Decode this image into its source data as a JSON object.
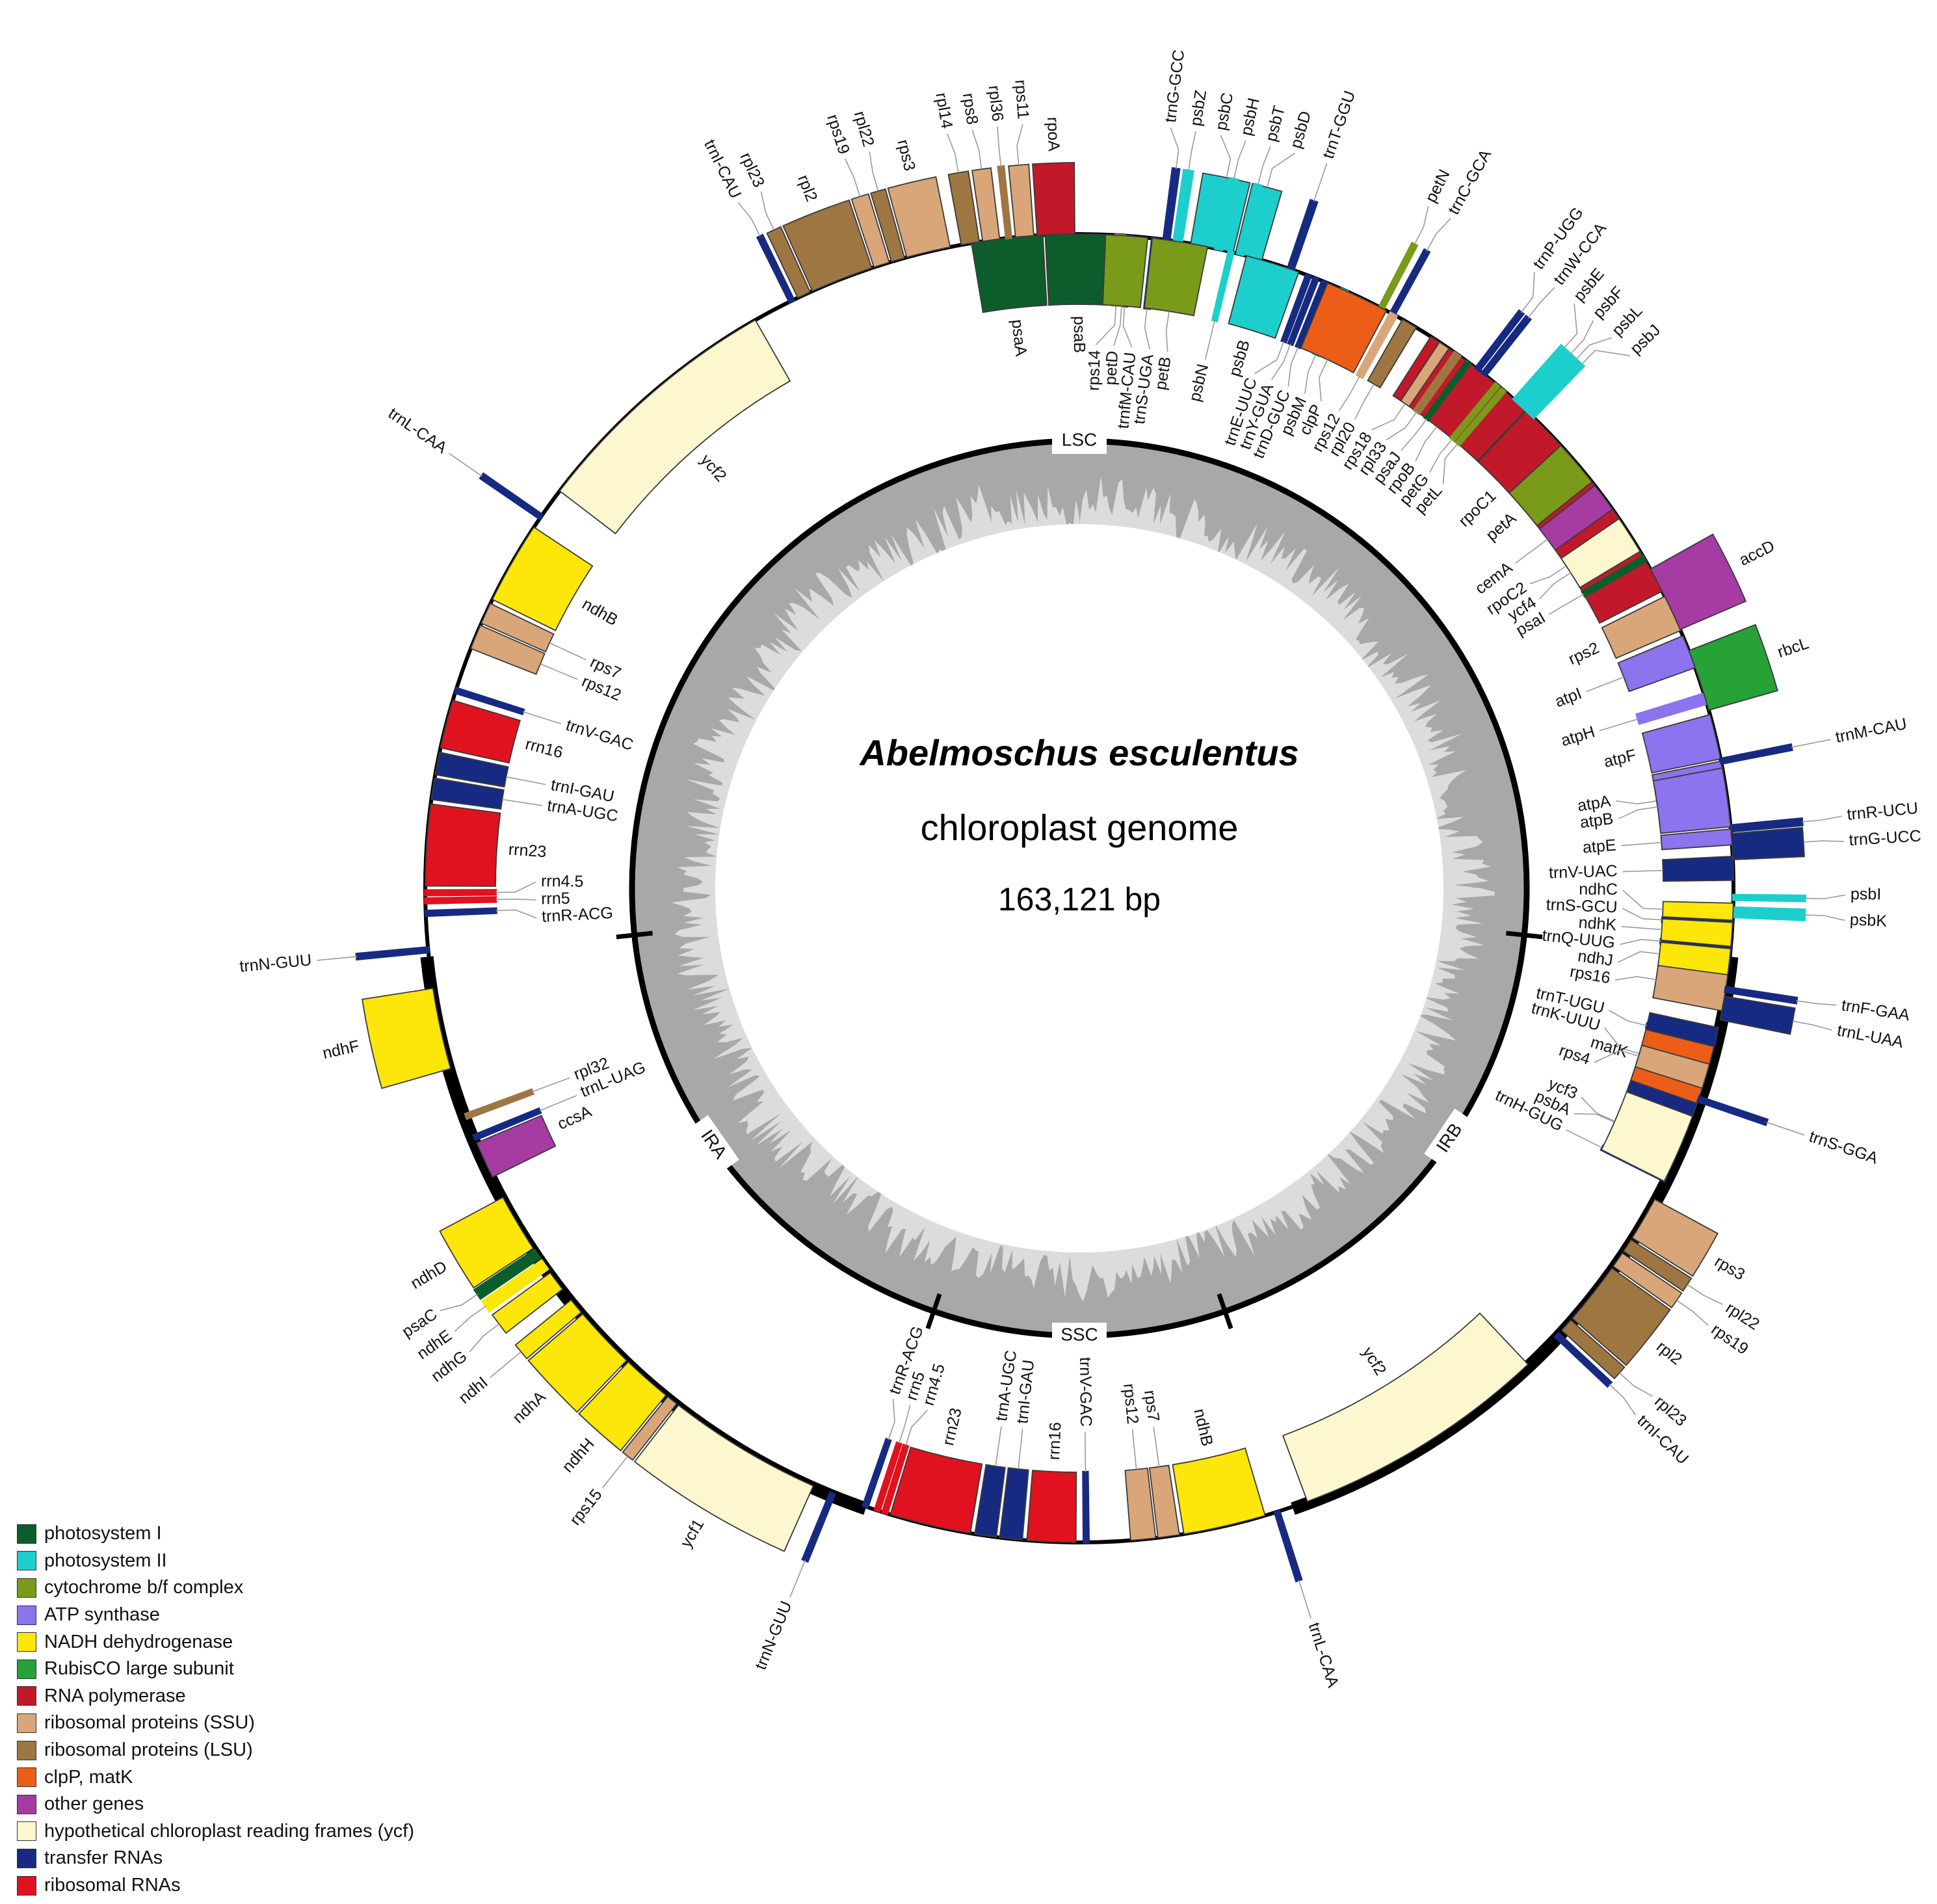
{
  "title": {
    "species": "Abelmoschus esculentus",
    "subtitle": "chloroplast genome",
    "length": "163,121 bp"
  },
  "regions": [
    {
      "label": "LSC",
      "angle": 0
    },
    {
      "label": "IRB",
      "angle": 124
    },
    {
      "label": "SSC",
      "angle": 180
    },
    {
      "label": "IRA",
      "angle": 235
    }
  ],
  "boundary_ticks": [
    96,
    161,
    199,
    264
  ],
  "colors": {
    "photosystem I": "#0d5d2c",
    "photosystem II": "#1ccfcc",
    "cytochrome b/f complex": "#7a9a1a",
    "ATP synthase": "#8d73ee",
    "NADH dehydrogenase": "#fde60a",
    "RubisCO large subunit": "#26a237",
    "RNA polymerase": "#c11929",
    "ribosomal proteins (SSU)": "#d9a679",
    "ribosomal proteins (LSU)": "#9e7642",
    "clpP, matK": "#ec5e17",
    "other genes": "#a63ba4",
    "hypothetical chloroplast reading frames (ycf)": "#fdf7cf",
    "transfer RNAs": "#172a82",
    "ribosomal RNAs": "#e0121f"
  },
  "legend": [
    {
      "label": "photosystem I",
      "color": "#0d5d2c"
    },
    {
      "label": "photosystem II",
      "color": "#1ccfcc"
    },
    {
      "label": "cytochrome b/f complex",
      "color": "#7a9a1a"
    },
    {
      "label": "ATP synthase",
      "color": "#8d73ee"
    },
    {
      "label": "NADH dehydrogenase",
      "color": "#fde60a"
    },
    {
      "label": "RubisCO large subunit",
      "color": "#26a237"
    },
    {
      "label": "RNA polymerase",
      "color": "#c11929"
    },
    {
      "label": "ribosomal proteins (SSU)",
      "color": "#d9a679"
    },
    {
      "label": "ribosomal proteins (LSU)",
      "color": "#9e7642"
    },
    {
      "label": "clpP, matK",
      "color": "#ec5e17"
    },
    {
      "label": "other genes",
      "color": "#a63ba4"
    },
    {
      "label": "hypothetical chloroplast reading frames (ycf)",
      "color": "#fdf7cf"
    },
    {
      "label": "transfer RNAs",
      "color": "#172a82"
    },
    {
      "label": "ribosomal RNAs",
      "color": "#e0121f"
    }
  ],
  "genes": [
    {
      "name": "psaA",
      "start": 350.5,
      "end": 356.8,
      "strand": "in",
      "cat": "photosystem I"
    },
    {
      "name": "psaB",
      "start": 357.0,
      "end": 362.8,
      "strand": "in",
      "cat": "photosystem I"
    },
    {
      "name": "rps14",
      "start": 363.2,
      "end": 364.0,
      "strand": "in",
      "cat": "ribosomal proteins (SSU)"
    },
    {
      "name": "trnfM-CAU",
      "start": 364.2,
      "end": 364.7,
      "strand": "in",
      "cat": "transfer RNAs"
    },
    {
      "name": "trnS-UGA",
      "start": 366.4,
      "end": 366.9,
      "strand": "in",
      "cat": "transfer RNAs"
    },
    {
      "name": "trnG-GCC",
      "start": 367.4,
      "end": 367.9,
      "strand": "out",
      "cat": "transfer RNAs"
    },
    {
      "name": "psbZ",
      "start": 368.3,
      "end": 369.0,
      "strand": "out",
      "cat": "photosystem II"
    },
    {
      "name": "psbC",
      "start": 369.8,
      "end": 373.6,
      "strand": "out",
      "cat": "photosystem II"
    },
    {
      "name": "psbD",
      "start": 373.8,
      "end": 376.2,
      "strand": "out",
      "cat": "photosystem II"
    },
    {
      "name": "trnT-GGU",
      "start": 378.6,
      "end": 379.1,
      "strand": "out",
      "cat": "transfer RNAs"
    },
    {
      "name": "trnE-UUC",
      "start": 380.3,
      "end": 380.7,
      "strand": "in",
      "cat": "transfer RNAs"
    },
    {
      "name": "trnY-GUA",
      "start": 381.0,
      "end": 381.4,
      "strand": "in",
      "cat": "transfer RNAs"
    },
    {
      "name": "trnD-GUC",
      "start": 381.8,
      "end": 382.2,
      "strand": "in",
      "cat": "transfer RNAs"
    },
    {
      "name": "psbM",
      "start": 383.6,
      "end": 384.2,
      "strand": "in",
      "cat": "photosystem II"
    },
    {
      "name": "petN",
      "start": 387.3,
      "end": 387.7,
      "strand": "out",
      "cat": "cytochrome b/f complex"
    },
    {
      "name": "trnC-GCA",
      "start": 388.4,
      "end": 388.8,
      "strand": "out",
      "cat": "transfer RNAs"
    },
    {
      "name": "rpoB",
      "start": 392.5,
      "end": 403.0,
      "strand": "in",
      "cat": "RNA polymerase"
    },
    {
      "name": "rpoC1",
      "start": 403.1,
      "end": 409.8,
      "strand": "in",
      "cat": "RNA polymerase"
    },
    {
      "name": "rpoC2",
      "start": 410.0,
      "end": 423.0,
      "strand": "in",
      "cat": "RNA polymerase"
    },
    {
      "name": "rps2",
      "start": 423.5,
      "end": 426.8,
      "strand": "in",
      "cat": "ribosomal proteins (SSU)"
    },
    {
      "name": "atpI",
      "start": 427.3,
      "end": 430.3,
      "strand": "in",
      "cat": "ATP synthase"
    },
    {
      "name": "atpH",
      "start": 432.7,
      "end": 433.6,
      "strand": "in",
      "cat": "ATP synthase"
    },
    {
      "name": "atpF",
      "start": 434.6,
      "end": 438.6,
      "strand": "in",
      "cat": "ATP synthase"
    },
    {
      "name": "atpA",
      "start": 438.8,
      "end": 444.0,
      "strand": "in",
      "cat": "ATP synthase"
    },
    {
      "name": "trnR-UCU",
      "start": 444.5,
      "end": 445.0,
      "strand": "out",
      "cat": "transfer RNAs"
    },
    {
      "name": "trnG-UCC",
      "start": 445.2,
      "end": 447.5,
      "strand": "out",
      "cat": "transfer RNAs"
    },
    {
      "name": "psbI",
      "start": 450.6,
      "end": 451.0,
      "strand": "out",
      "cat": "photosystem II"
    },
    {
      "name": "psbK",
      "start": 451.7,
      "end": 452.5,
      "strand": "out",
      "cat": "photosystem II"
    },
    {
      "name": "trnS-GCU",
      "start": 452.9,
      "end": 453.3,
      "strand": "in",
      "cat": "transfer RNAs"
    },
    {
      "name": "trnQ-UUG",
      "start": 455.0,
      "end": 455.4,
      "strand": "in",
      "cat": "transfer RNAs"
    },
    {
      "name": "rps16",
      "start": 457.2,
      "end": 460.8,
      "strand": "in",
      "cat": "ribosomal proteins (SSU)"
    },
    {
      "name": "trnK-UUU",
      "start": 462.3,
      "end": 470.6,
      "strand": "in",
      "cat": "transfer RNAs"
    },
    {
      "name": "matK",
      "start": 464.0,
      "end": 469.2,
      "strand": "in",
      "cat": "clpP, matK"
    },
    {
      "name": "psbA",
      "start": 471.7,
      "end": 475.5,
      "strand": "in",
      "cat": "photosystem II"
    },
    {
      "name": "trnH-GUG",
      "start": 476.2,
      "end": 476.6,
      "strand": "in",
      "cat": "transfer RNAs"
    },
    {
      "name": "rps3",
      "start": 478.4,
      "end": 482.3,
      "strand": "out",
      "cat": "ribosomal proteins (SSU)"
    },
    {
      "name": "rpl22",
      "start": 482.5,
      "end": 483.7,
      "strand": "out",
      "cat": "ribosomal proteins (LSU)"
    },
    {
      "name": "rps19",
      "start": 483.9,
      "end": 485.3,
      "strand": "out",
      "cat": "ribosomal proteins (SSU)"
    },
    {
      "name": "rpl2",
      "start": 485.5,
      "end": 491.1,
      "strand": "out",
      "cat": "ribosomal proteins (LSU)"
    },
    {
      "name": "rpl23",
      "start": 491.3,
      "end": 492.5,
      "strand": "out",
      "cat": "ribosomal proteins (LSU)"
    },
    {
      "name": "trnI-CAU",
      "start": 492.9,
      "end": 493.3,
      "strand": "out",
      "cat": "transfer RNAs"
    },
    {
      "name": "ycf2",
      "start": 496.7,
      "end": 519.6,
      "strand": "in",
      "cat": "hypothetical chloroplast reading frames (ycf)"
    },
    {
      "name": "trnL-CAA",
      "start": 522.2,
      "end": 522.6,
      "strand": "out",
      "cat": "transfer RNAs"
    },
    {
      "name": "ndhB",
      "start": 523.5,
      "end": 530.8,
      "strand": "in",
      "cat": "NADH dehydrogenase"
    },
    {
      "name": "rps7",
      "start": 531.2,
      "end": 533.1,
      "strand": "in",
      "cat": "ribosomal proteins (SSU)"
    },
    {
      "name": "rps12",
      "start": 533.3,
      "end": 535.5,
      "strand": "in",
      "cat": "ribosomal proteins (SSU)"
    },
    {
      "name": "trnV-GAC",
      "start": 539.2,
      "end": 539.6,
      "strand": "in",
      "cat": "transfer RNAs"
    },
    {
      "name": "rrn16",
      "start": 540.3,
      "end": 544.6,
      "strand": "in",
      "cat": "ribosomal RNAs"
    },
    {
      "name": "trnI-GAU",
      "start": 545.0,
      "end": 547.0,
      "strand": "in",
      "cat": "transfer RNAs"
    },
    {
      "name": "trnA-UGC",
      "start": 547.3,
      "end": 549.2,
      "strand": "in",
      "cat": "transfer RNAs"
    },
    {
      "name": "rrn23",
      "start": 549.6,
      "end": 556.8,
      "strand": "in",
      "cat": "ribosomal RNAs"
    },
    {
      "name": "rrn4.5",
      "start": 557.1,
      "end": 557.5,
      "strand": "in",
      "cat": "ribosomal RNAs"
    },
    {
      "name": "rrn5",
      "start": 557.8,
      "end": 558.2,
      "strand": "in",
      "cat": "ribosomal RNAs"
    },
    {
      "name": "trnR-ACG",
      "start": 558.9,
      "end": 559.3,
      "strand": "in",
      "cat": "transfer RNAs"
    },
    {
      "name": "trnN-GUU",
      "start": 562.0,
      "end": 562.4,
      "strand": "out",
      "cat": "transfer RNAs"
    },
    {
      "name": "ycf1",
      "start": 564.0,
      "end": 577.8,
      "strand": "out",
      "cat": "hypothetical chloroplast reading frames (ycf)"
    },
    {
      "name": "rps15",
      "start": 578.0,
      "end": 579.0,
      "strand": "out",
      "cat": "ribosomal proteins (SSU)"
    },
    {
      "name": "ndhH",
      "start": 579.2,
      "end": 583.6,
      "strand": "out",
      "cat": "NADH dehydrogenase"
    },
    {
      "name": "ndhA",
      "start": 583.8,
      "end": 589.4,
      "strand": "out",
      "cat": "NADH dehydrogenase"
    },
    {
      "name": "ndhI",
      "start": 589.6,
      "end": 591.0,
      "strand": "out",
      "cat": "NADH dehydrogenase"
    },
    {
      "name": "ndhG",
      "start": 592.2,
      "end": 594.0,
      "strand": "out",
      "cat": "NADH dehydrogenase"
    },
    {
      "name": "ndhE",
      "start": 594.4,
      "end": 595.3,
      "strand": "out",
      "cat": "NADH dehydrogenase"
    },
    {
      "name": "psaC",
      "start": 595.6,
      "end": 596.4,
      "strand": "out",
      "cat": "photosystem I"
    },
    {
      "name": "ndhD",
      "start": 596.6,
      "end": 601.8,
      "strand": "out",
      "cat": "NADH dehydrogenase"
    },
    {
      "name": "ccsA",
      "start": 603.8,
      "end": 607.1,
      "strand": "in",
      "cat": "other genes"
    },
    {
      "name": "trnL-UAG",
      "start": 607.4,
      "end": 607.8,
      "strand": "in",
      "cat": "transfer RNAs"
    },
    {
      "name": "rpl32",
      "start": 609.4,
      "end": 609.8,
      "strand": "in",
      "cat": "ribosomal proteins (LSU)"
    },
    {
      "name": "ndhF",
      "start": 614.0,
      "end": 621.2,
      "strand": "out",
      "cat": "NADH dehydrogenase"
    },
    {
      "name": "trnN-GUU",
      "start": 624.4,
      "end": 624.8,
      "strand": "out",
      "cat": "transfer RNAs"
    },
    {
      "name": "trnR-ACG",
      "start": 627.6,
      "end": 628.0,
      "strand": "in",
      "cat": "transfer RNAs"
    },
    {
      "name": "rrn5",
      "start": 628.7,
      "end": 629.1,
      "strand": "in",
      "cat": "ribosomal RNAs"
    },
    {
      "name": "rrn4.5",
      "start": 629.4,
      "end": 629.8,
      "strand": "in",
      "cat": "ribosomal RNAs"
    },
    {
      "name": "rrn23",
      "start": 630.2,
      "end": 637.4,
      "strand": "in",
      "cat": "ribosomal RNAs"
    },
    {
      "name": "trnA-UGC",
      "start": 637.8,
      "end": 639.7,
      "strand": "in",
      "cat": "transfer RNAs"
    },
    {
      "name": "trnI-GAU",
      "start": 640.0,
      "end": 642.0,
      "strand": "in",
      "cat": "transfer RNAs"
    },
    {
      "name": "rrn16",
      "start": 642.4,
      "end": 646.7,
      "strand": "in",
      "cat": "ribosomal RNAs"
    },
    {
      "name": "trnV-GAC",
      "start": 647.4,
      "end": 647.8,
      "strand": "in",
      "cat": "transfer RNAs"
    },
    {
      "name": "rps12",
      "start": 651.5,
      "end": 653.7,
      "strand": "in",
      "cat": "ribosomal proteins (SSU)"
    },
    {
      "name": "rps7",
      "start": 653.9,
      "end": 655.8,
      "strand": "in",
      "cat": "ribosomal proteins (SSU)"
    },
    {
      "name": "ndhB",
      "start": 656.2,
      "end": 663.5,
      "strand": "in",
      "cat": "NADH dehydrogenase"
    },
    {
      "name": "trnL-CAA",
      "start": 664.4,
      "end": 664.8,
      "strand": "out",
      "cat": "transfer RNAs"
    },
    {
      "name": "ycf2",
      "start": 667.4,
      "end": 690.3,
      "strand": "in",
      "cat": "hypothetical chloroplast reading frames (ycf)"
    },
    {
      "name": "trnI-CAU",
      "start": 693.7,
      "end": 694.1,
      "strand": "out",
      "cat": "transfer RNAs"
    },
    {
      "name": "rpl23",
      "start": 694.5,
      "end": 695.7,
      "strand": "out",
      "cat": "ribosomal proteins (LSU)"
    },
    {
      "name": "rpl2",
      "start": 695.9,
      "end": 701.5,
      "strand": "out",
      "cat": "ribosomal proteins (LSU)"
    },
    {
      "name": "rps19",
      "start": 701.7,
      "end": 703.1,
      "strand": "out",
      "cat": "ribosomal proteins (SSU)"
    },
    {
      "name": "rpl22",
      "start": 703.3,
      "end": 704.5,
      "strand": "out",
      "cat": "ribosomal proteins (LSU)"
    },
    {
      "name": "rps3",
      "start": 704.7,
      "end": 708.6,
      "strand": "out",
      "cat": "ribosomal proteins (SSU)"
    },
    {
      "name": "rpl14",
      "start": 709.6,
      "end": 711.2,
      "strand": "out",
      "cat": "ribosomal proteins (LSU)"
    },
    {
      "name": "rps8",
      "start": 711.5,
      "end": 713.0,
      "strand": "out",
      "cat": "ribosomal proteins (SSU)"
    },
    {
      "name": "rpl36",
      "start": 713.6,
      "end": 714.0,
      "strand": "out",
      "cat": "ribosomal proteins (LSU)"
    },
    {
      "name": "rps11",
      "start": 714.4,
      "end": 716.0,
      "strand": "out",
      "cat": "ribosomal proteins (SSU)"
    },
    {
      "name": "rpoA",
      "start": 716.3,
      "end": 719.6,
      "strand": "out",
      "cat": "RNA polymerase"
    },
    {
      "name": "petD",
      "start": 722.3,
      "end": 726.0,
      "strand": "in",
      "cat": "cytochrome b/f complex"
    },
    {
      "name": "petB",
      "start": 726.4,
      "end": 731.3,
      "strand": "in",
      "cat": "cytochrome b/f complex"
    },
    {
      "name": "psbH",
      "start": 732.0,
      "end": 732.6,
      "strand": "out",
      "cat": "photosystem II"
    },
    {
      "name": "psbN",
      "start": 733.2,
      "end": 733.6,
      "strand": "in",
      "cat": "photosystem II"
    },
    {
      "name": "psbT",
      "start": 734.0,
      "end": 734.5,
      "strand": "out",
      "cat": "photosystem II"
    },
    {
      "name": "psbB",
      "start": 734.8,
      "end": 739.6,
      "strand": "in",
      "cat": "photosystem II"
    },
    {
      "name": "clpP",
      "start": 742.3,
      "end": 748.0,
      "strand": "in",
      "cat": "clpP, matK"
    },
    {
      "name": "rps12",
      "start": 748.4,
      "end": 749.0,
      "strand": "in",
      "cat": "ribosomal proteins (SSU)"
    },
    {
      "name": "rpl20",
      "start": 749.6,
      "end": 751.0,
      "strand": "in",
      "cat": "ribosomal proteins (LSU)"
    },
    {
      "name": "rps18",
      "start": 753.4,
      "end": 754.4,
      "strand": "in",
      "cat": "ribosomal proteins (SSU)"
    },
    {
      "name": "rpl33",
      "start": 755.0,
      "end": 755.6,
      "strand": "in",
      "cat": "ribosomal proteins (LSU)"
    },
    {
      "name": "psaJ",
      "start": 756.3,
      "end": 756.7,
      "strand": "in",
      "cat": "photosystem I"
    },
    {
      "name": "trnP-UGG",
      "start": 757.3,
      "end": 757.7,
      "strand": "out",
      "cat": "transfer RNAs"
    },
    {
      "name": "trnW-CCA",
      "start": 758.0,
      "end": 758.4,
      "strand": "out",
      "cat": "transfer RNAs"
    },
    {
      "name": "petG",
      "start": 759.5,
      "end": 759.9,
      "strand": "in",
      "cat": "cytochrome b/f complex"
    },
    {
      "name": "petL",
      "start": 760.2,
      "end": 760.6,
      "strand": "in",
      "cat": "cytochrome b/f complex"
    },
    {
      "name": "psbE",
      "start": 761.6,
      "end": 762.2,
      "strand": "out",
      "cat": "photosystem II"
    },
    {
      "name": "psbF",
      "start": 762.4,
      "end": 762.8,
      "strand": "out",
      "cat": "photosystem II"
    },
    {
      "name": "psbL",
      "start": 763.0,
      "end": 763.4,
      "strand": "out",
      "cat": "photosystem II"
    },
    {
      "name": "psbJ",
      "start": 763.6,
      "end": 764.0,
      "strand": "out",
      "cat": "photosystem II"
    },
    {
      "name": "petA",
      "start": 767.4,
      "end": 771.6,
      "strand": "in",
      "cat": "cytochrome b/f complex"
    },
    {
      "name": "cemA",
      "start": 772.0,
      "end": 774.6,
      "strand": "in",
      "cat": "other genes"
    },
    {
      "name": "ycf4",
      "start": 775.6,
      "end": 779.0,
      "strand": "in",
      "cat": "hypothetical chloroplast reading frames (ycf)"
    },
    {
      "name": "psaI",
      "start": 779.5,
      "end": 780.0,
      "strand": "in",
      "cat": "photosystem I"
    },
    {
      "name": "accD",
      "start": 780.8,
      "end": 786.7,
      "strand": "out",
      "cat": "other genes"
    },
    {
      "name": "rbcL",
      "start": 788.7,
      "end": 794.2,
      "strand": "out",
      "cat": "RubisCO large subunit"
    },
    {
      "name": "trnM-CAU",
      "start": 798.6,
      "end": 799.0,
      "strand": "out",
      "cat": "transfer RNAs"
    },
    {
      "name": "atpB",
      "start": 799.4,
      "end": 804.6,
      "strand": "in",
      "cat": "ATP synthase"
    },
    {
      "name": "atpE",
      "start": 804.8,
      "end": 806.2,
      "strand": "in",
      "cat": "ATP synthase"
    },
    {
      "name": "trnV-UAC",
      "start": 807.2,
      "end": 809.3,
      "strand": "in",
      "cat": "transfer RNAs"
    },
    {
      "name": "ndhC",
      "start": 811.3,
      "end": 812.8,
      "strand": "in",
      "cat": "NADH dehydrogenase"
    },
    {
      "name": "ndhK",
      "start": 813.0,
      "end": 815.1,
      "strand": "in",
      "cat": "NADH dehydrogenase"
    },
    {
      "name": "ndhJ",
      "start": 815.3,
      "end": 817.6,
      "strand": "in",
      "cat": "NADH dehydrogenase"
    },
    {
      "name": "trnF-GAA",
      "start": 818.7,
      "end": 819.1,
      "strand": "out",
      "cat": "transfer RNAs"
    },
    {
      "name": "trnL-UAA",
      "start": 819.5,
      "end": 821.6,
      "strand": "out",
      "cat": "transfer RNAs"
    },
    {
      "name": "trnT-UGU",
      "start": 823.4,
      "end": 823.8,
      "strand": "in",
      "cat": "transfer RNAs"
    },
    {
      "name": "rps4",
      "start": 825.6,
      "end": 827.8,
      "strand": "in",
      "cat": "ribosomal proteins (SSU)"
    },
    {
      "name": "trnS-GGA",
      "start": 828.6,
      "end": 829.0,
      "strand": "out",
      "cat": "transfer RNAs"
    },
    {
      "name": "ycf3",
      "start": 830.4,
      "end": 836.6,
      "strand": "in",
      "cat": "hypothetical chloroplast reading frames (ycf)"
    }
  ]
}
